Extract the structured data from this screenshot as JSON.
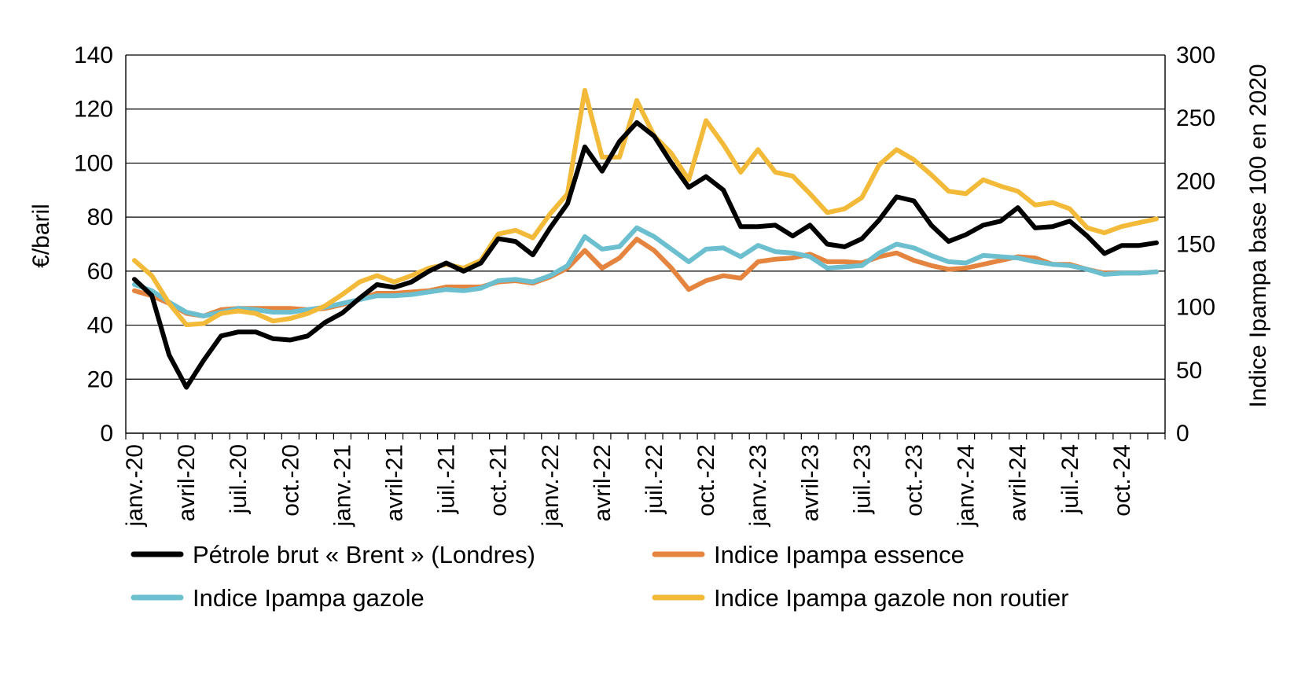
{
  "chart_data": {
    "type": "line",
    "xlabel": "",
    "ylabel": "€/baril",
    "y2label": "Indice Ipampa base 100 en 2020",
    "ylim": [
      0,
      140
    ],
    "y2lim": [
      0,
      300
    ],
    "yticks": [
      0,
      20,
      40,
      60,
      80,
      100,
      120,
      140
    ],
    "y2ticks": [
      0,
      50,
      100,
      150,
      200,
      250,
      300
    ],
    "grid": true,
    "legend_position": "bottom",
    "x": [
      "janv.-20",
      "févr.-20",
      "mars-20",
      "avril-20",
      "mai-20",
      "juin-20",
      "juil.-20",
      "août-20",
      "sept.-20",
      "oct.-20",
      "nov.-20",
      "déc.-20",
      "janv.-21",
      "févr.-21",
      "mars-21",
      "avril-21",
      "mai-21",
      "juin-21",
      "juil.-21",
      "août-21",
      "sept.-21",
      "oct.-21",
      "nov.-21",
      "déc.-21",
      "janv.-22",
      "févr.-22",
      "mars-22",
      "avril-22",
      "mai-22",
      "juin-22",
      "juil.-22",
      "août-22",
      "sept.-22",
      "oct.-22",
      "nov.-22",
      "déc.-22",
      "janv.-23",
      "févr.-23",
      "mars-23",
      "avril-23",
      "mai-23",
      "juin-23",
      "juil.-23",
      "août-23",
      "sept.-23",
      "oct.-23",
      "nov.-23",
      "déc.-23",
      "janv.-24",
      "févr.-24",
      "mars-24",
      "avril-24",
      "mai-24",
      "juin-24",
      "juil.-24",
      "août-24",
      "sept.-24",
      "oct.-24",
      "nov.-24",
      "déc.-24"
    ],
    "x_tick_labels": [
      "janv.-20",
      "avril-20",
      "juil.-20",
      "oct.-20",
      "janv.-21",
      "avril-21",
      "juil.-21",
      "oct.-21",
      "janv.-22",
      "avril-22",
      "juil.-22",
      "oct.-22",
      "janv.-23",
      "avril-23",
      "juil.-23",
      "oct.-23",
      "janv.-24",
      "avril-24",
      "juil.-24",
      "oct.-24"
    ],
    "series": [
      {
        "name": "Pétrole brut « Brent » (Londres)",
        "axis": "left",
        "color": "#000000",
        "values": [
          57,
          51,
          29,
          17,
          27,
          36,
          37.5,
          37.5,
          35,
          34.5,
          36,
          41,
          44.5,
          50,
          55,
          54,
          56,
          60,
          63,
          60,
          63,
          72,
          71,
          66,
          76,
          85,
          106,
          97,
          108,
          115,
          110,
          100,
          91,
          95,
          90,
          76.5,
          76.5,
          77,
          73,
          77,
          70,
          69,
          72,
          79,
          87.5,
          86,
          77,
          71,
          73.5,
          77,
          78.5,
          83.5,
          76,
          76.5,
          78.5,
          73,
          66.5,
          69.5,
          69.5,
          70.5
        ]
      },
      {
        "name": "Indice Ipampa essence",
        "axis": "right",
        "color": "#E5843E",
        "values": [
          113,
          109,
          103,
          95,
          93,
          98,
          99,
          99,
          99,
          99,
          98,
          99,
          102,
          106,
          111,
          111,
          112,
          113,
          116,
          116,
          116,
          120,
          121,
          119,
          124,
          131,
          145,
          131,
          139,
          154,
          145,
          131,
          114,
          121,
          125,
          123,
          136,
          138,
          139,
          142,
          136,
          136,
          135,
          140,
          143,
          137,
          133,
          130,
          131,
          134,
          137,
          140,
          139,
          134,
          134,
          130,
          127,
          127,
          127,
          128
        ]
      },
      {
        "name": "Indice Ipampa gazole",
        "axis": "right",
        "color": "#6CBFCF",
        "values": [
          118,
          113,
          104,
          96,
          93,
          96,
          99,
          98,
          96,
          96,
          98,
          100,
          103,
          106,
          109,
          109,
          110,
          112,
          114,
          113,
          115,
          121,
          122,
          120,
          125,
          133,
          156,
          146,
          148,
          163,
          156,
          146,
          136,
          146,
          147,
          140,
          149,
          144,
          143,
          140,
          131,
          132,
          133,
          143,
          150,
          147,
          141,
          136,
          135,
          141,
          140,
          139,
          136,
          134,
          133,
          130,
          126,
          127,
          127,
          128
        ]
      },
      {
        "name": "Indice Ipampa gazole non routier",
        "axis": "right",
        "color": "#F2BA38",
        "values": [
          137,
          125,
          103,
          86,
          87,
          95,
          97,
          95,
          89,
          91,
          95,
          101,
          110,
          120,
          125,
          120,
          125,
          131,
          134,
          131,
          137,
          158,
          161,
          155,
          174,
          190,
          272,
          219,
          219,
          264,
          236,
          222,
          201,
          248,
          229,
          207,
          225,
          207,
          204,
          190,
          175,
          178,
          187,
          213,
          225,
          217,
          205,
          192,
          190,
          201,
          196,
          192,
          181,
          183,
          178,
          163,
          159,
          164,
          167,
          170
        ]
      }
    ]
  }
}
